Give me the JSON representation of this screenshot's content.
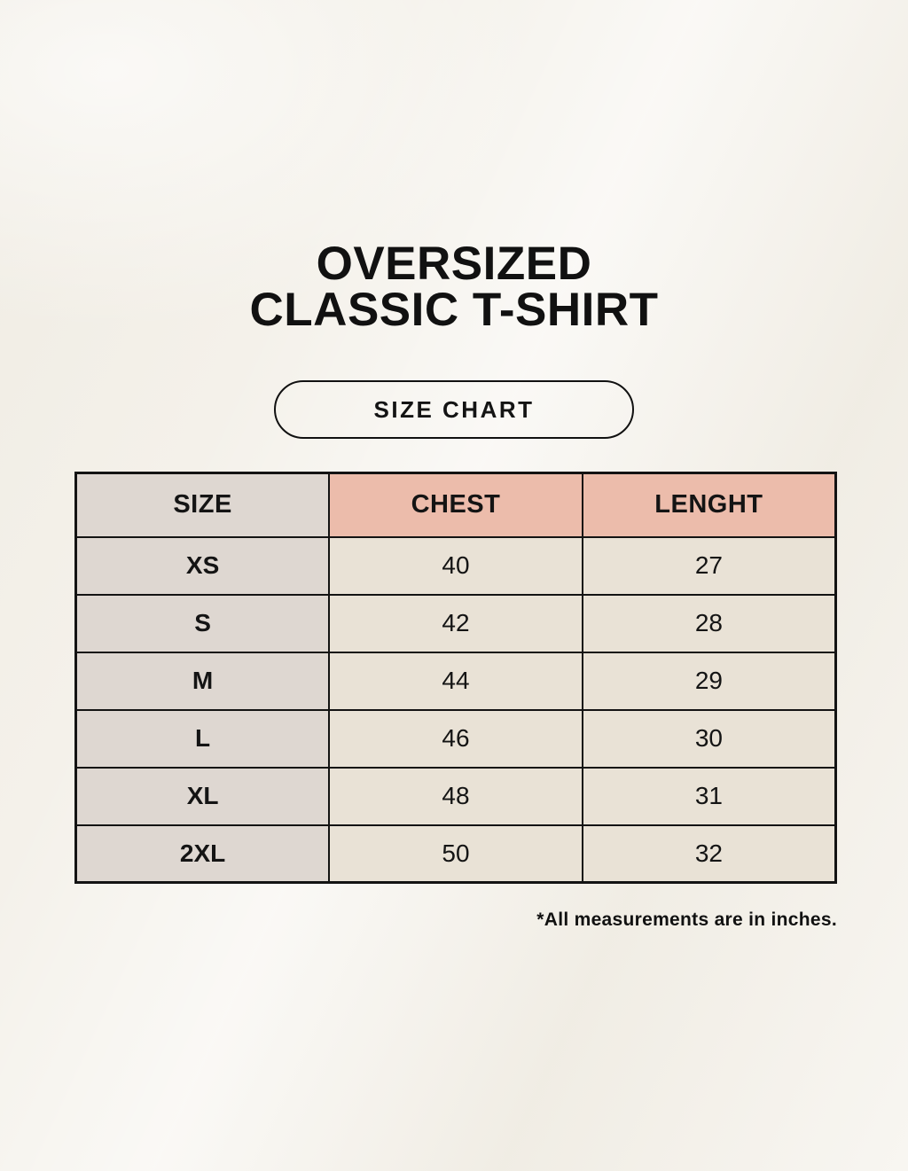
{
  "title": {
    "line1": "OVERSIZED",
    "line2": "CLASSIC T-SHIRT"
  },
  "size_chart_button": {
    "label": "SIZE CHART"
  },
  "chart_data": {
    "type": "table",
    "title": "OVERSIZED CLASSIC T-SHIRT — SIZE CHART",
    "columns": [
      "SIZE",
      "CHEST",
      "LENGHT"
    ],
    "rows": [
      [
        "XS",
        "40",
        "27"
      ],
      [
        "S",
        "42",
        "28"
      ],
      [
        "M",
        "44",
        "29"
      ],
      [
        "L",
        "46",
        "30"
      ],
      [
        "XL",
        "48",
        "31"
      ],
      [
        "2XL",
        "50",
        "32"
      ]
    ],
    "units": "inches"
  },
  "footnote": "*All measurements are in inches.",
  "colors": {
    "page_background": "#f5f2ec",
    "size_column_background": "#ded7d1",
    "accent_header_background": "#ecbcab",
    "data_cell_background": "#e9e2d6",
    "border": "#131313",
    "text": "#111111"
  }
}
